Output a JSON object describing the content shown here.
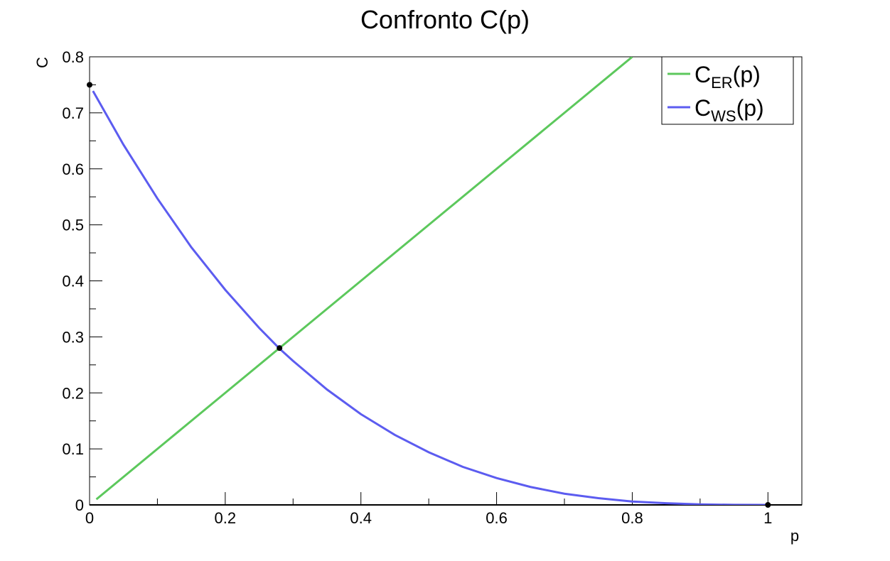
{
  "chart_data": {
    "type": "line",
    "title": "Confronto C(p)",
    "xlabel": "p",
    "ylabel": "C",
    "xlim": [
      0,
      1.05
    ],
    "ylim": [
      0,
      0.8
    ],
    "x_ticks": [
      "0",
      "0.2",
      "0.4",
      "0.6",
      "0.8",
      "1"
    ],
    "y_ticks": [
      "0",
      "0.1",
      "0.2",
      "0.3",
      "0.4",
      "0.5",
      "0.6",
      "0.7",
      "0.8"
    ],
    "grid": false,
    "legend_placement": "top-right",
    "series": [
      {
        "name": "C_ER(p)",
        "legend_main": "C",
        "legend_sub": "ER",
        "legend_tail": "(p)",
        "color": "#5cc85c",
        "x": [
          0.01,
          0.1,
          0.2,
          0.3,
          0.4,
          0.5,
          0.6,
          0.7,
          0.8
        ],
        "y": [
          0.01,
          0.1,
          0.2,
          0.3,
          0.4,
          0.5,
          0.6,
          0.7,
          0.8
        ]
      },
      {
        "name": "C_WS(p)",
        "legend_main": "C",
        "legend_sub": "WS",
        "legend_tail": "(p)",
        "color": "#5c5cf0",
        "x": [
          0.005,
          0.05,
          0.1,
          0.15,
          0.2,
          0.25,
          0.28,
          0.3,
          0.35,
          0.4,
          0.45,
          0.5,
          0.55,
          0.6,
          0.65,
          0.7,
          0.75,
          0.8,
          0.85,
          0.9,
          0.95,
          1.0
        ],
        "y": [
          0.739,
          0.643,
          0.547,
          0.46,
          0.384,
          0.316,
          0.279,
          0.257,
          0.206,
          0.162,
          0.125,
          0.094,
          0.068,
          0.048,
          0.032,
          0.02,
          0.012,
          0.006,
          0.003,
          0.001,
          0.0001,
          0.0
        ]
      }
    ],
    "markers": [
      {
        "x": 0,
        "y": 0.75
      },
      {
        "x": 0.28,
        "y": 0.28
      },
      {
        "x": 1.0,
        "y": 0.0
      }
    ]
  }
}
